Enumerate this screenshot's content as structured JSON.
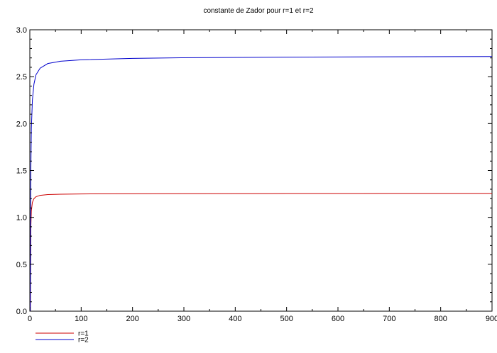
{
  "chart_data": {
    "type": "line",
    "title": "constante de Zador pour r=1 et r=2",
    "xlabel": "",
    "ylabel": "",
    "xlim": [
      0,
      900
    ],
    "ylim": [
      0,
      3
    ],
    "grid": false,
    "legend_position": "bottom-left",
    "x_ticks": [
      0,
      100,
      200,
      300,
      400,
      500,
      600,
      700,
      800,
      900
    ],
    "x_tick_labels": [
      "0",
      "100",
      "200",
      "300",
      "400",
      "500",
      "600",
      "700",
      "800",
      "900"
    ],
    "y_ticks": [
      0,
      0.5,
      1,
      1.5,
      2,
      2.5,
      3
    ],
    "y_tick_labels": [
      "0.0",
      "0.5",
      "1.0",
      "1.5",
      "2.0",
      "2.5",
      "3.0"
    ],
    "series": [
      {
        "name": "r=1",
        "color": "#cc0000",
        "x": [
          1,
          2,
          3,
          5,
          8,
          12,
          20,
          35,
          60,
          100,
          200,
          300,
          500,
          700,
          900
        ],
        "y": [
          0.0,
          0.9,
          1.07,
          1.16,
          1.2,
          1.22,
          1.235,
          1.243,
          1.247,
          1.25,
          1.252,
          1.253,
          1.254,
          1.255,
          1.255
        ]
      },
      {
        "name": "r=2",
        "color": "#0000cc",
        "x": [
          1,
          2,
          3,
          5,
          8,
          12,
          20,
          35,
          60,
          100,
          200,
          300,
          500,
          700,
          900
        ],
        "y": [
          0.0,
          1.5,
          1.95,
          2.25,
          2.42,
          2.52,
          2.59,
          2.64,
          2.665,
          2.68,
          2.695,
          2.702,
          2.708,
          2.712,
          2.715
        ]
      }
    ]
  }
}
